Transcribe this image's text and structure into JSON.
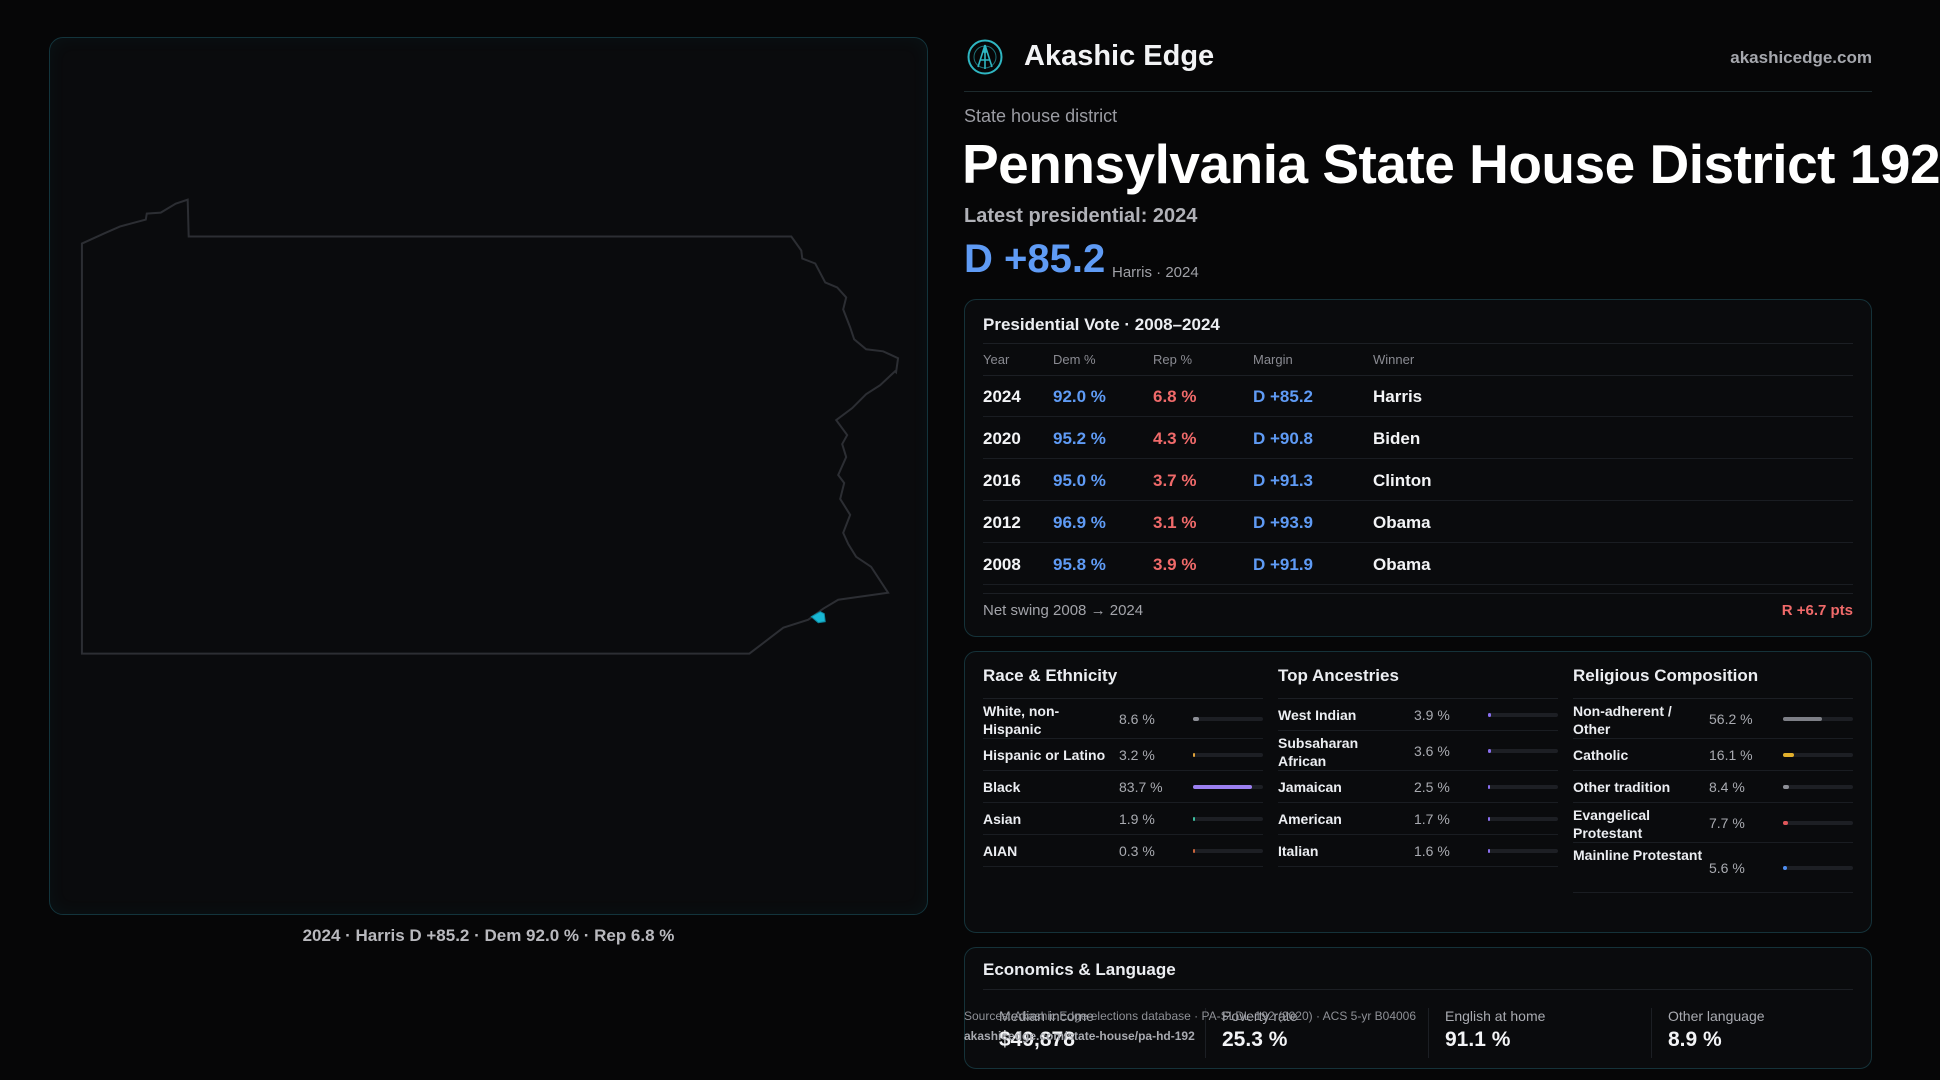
{
  "brand": {
    "name": "Akashic Edge",
    "site": "akashicedge.com"
  },
  "district": {
    "kind": "State house district",
    "title": "Pennsylvania State House District 192",
    "latest_label": "Latest presidential: 2024",
    "margin": "D +85.2",
    "margin_sub": "Harris · 2024"
  },
  "map": {
    "caption": "2024 · Harris D +85.2 · Dem 92.0 % · Rep 6.8 %",
    "district_color": "#19b8d4"
  },
  "presidential": {
    "title": "Presidential Vote · 2008–2024",
    "headers": {
      "year": "Year",
      "dem": "Dem %",
      "rep": "Rep %",
      "margin": "Margin",
      "winner": "Winner"
    },
    "rows": [
      {
        "year": "2024",
        "dem": "92.0 %",
        "rep": "6.8 %",
        "margin": "D +85.2",
        "winner": "Harris"
      },
      {
        "year": "2020",
        "dem": "95.2 %",
        "rep": "4.3 %",
        "margin": "D +90.8",
        "winner": "Biden"
      },
      {
        "year": "2016",
        "dem": "95.0 %",
        "rep": "3.7 %",
        "margin": "D +91.3",
        "winner": "Clinton"
      },
      {
        "year": "2012",
        "dem": "96.9 %",
        "rep": "3.1 %",
        "margin": "D +93.9",
        "winner": "Obama"
      },
      {
        "year": "2008",
        "dem": "95.8 %",
        "rep": "3.9 %",
        "margin": "D +91.9",
        "winner": "Obama"
      }
    ],
    "swing_label": "Net swing 2008 → 2024",
    "swing_value": "R +6.7 pts"
  },
  "race": {
    "title": "Race & Ethnicity",
    "items": [
      {
        "label": "White, non-Hispanic",
        "pct": "8.6 %",
        "value": 8.6,
        "color": "#8d8f96"
      },
      {
        "label": "Hispanic or Latino",
        "pct": "3.2 %",
        "value": 3.2,
        "color": "#e0a33a"
      },
      {
        "label": "Black",
        "pct": "83.7 %",
        "value": 83.7,
        "color": "#9b7ff0"
      },
      {
        "label": "Asian",
        "pct": "1.9 %",
        "value": 1.9,
        "color": "#3dbfa0"
      },
      {
        "label": "AIAN",
        "pct": "0.3 %",
        "value": 0.3,
        "color": "#c8643c"
      }
    ]
  },
  "ancestry": {
    "title": "Top Ancestries",
    "items": [
      {
        "label": "West Indian",
        "pct": "3.9 %",
        "value": 3.9,
        "color": "#8a6ff0"
      },
      {
        "label": "Subsaharan African",
        "pct": "3.6 %",
        "value": 3.6,
        "color": "#8a6ff0"
      },
      {
        "label": "Jamaican",
        "pct": "2.5 %",
        "value": 2.5,
        "color": "#8a6ff0"
      },
      {
        "label": "American",
        "pct": "1.7 %",
        "value": 1.7,
        "color": "#8a6ff0"
      },
      {
        "label": "Italian",
        "pct": "1.6 %",
        "value": 1.6,
        "color": "#8a6ff0"
      }
    ]
  },
  "religion": {
    "title": "Religious Composition",
    "items": [
      {
        "label": "Non-adherent / Other",
        "pct": "56.2 %",
        "value": 56.2,
        "color": "#7d7f86"
      },
      {
        "label": "Catholic",
        "pct": "16.1 %",
        "value": 16.1,
        "color": "#e2b02c"
      },
      {
        "label": "Other tradition",
        "pct": "8.4 %",
        "value": 8.4,
        "color": "#8d8f96"
      },
      {
        "label": "Evangelical Protestant",
        "pct": "7.7 %",
        "value": 7.7,
        "color": "#e0575a"
      },
      {
        "label": "Mainline Protestant",
        "pct": "5.6 %",
        "value": 5.6,
        "color": "#4f8ef0"
      }
    ]
  },
  "economics": {
    "title": "Economics & Language",
    "stats": [
      {
        "label": "Median income",
        "value": "$49,878"
      },
      {
        "label": "Poverty rate",
        "value": "25.3 %"
      },
      {
        "label": "English at home",
        "value": "91.1 %"
      },
      {
        "label": "Other language",
        "value": "8.9 %"
      }
    ]
  },
  "sources": {
    "line1": "Sources: Akashic Edge elections database · PA-SLDL-192 (2020) · ACS 5-yr B04006",
    "line2": "akashicedge.com/state-house/pa-hd-192"
  }
}
